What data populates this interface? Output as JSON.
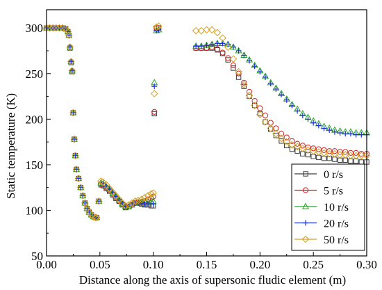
{
  "chart_data": {
    "type": "scatter",
    "xlabel": "Distance along the axis of supersonic fludic element (m)",
    "ylabel": "Static temperature (K)",
    "xlim": [
      0.0,
      0.3
    ],
    "ylim": [
      50,
      320
    ],
    "xticks": [
      "0.00",
      "0.05",
      "0.10",
      "0.15",
      "0.20",
      "0.25",
      "0.30"
    ],
    "yticks": [
      "50",
      "100",
      "150",
      "200",
      "250",
      "300"
    ],
    "legend_position": "lower-right",
    "series": [
      {
        "name": "0 r/s",
        "color": "#3a3a3a",
        "marker": "square",
        "x": [
          0.0,
          0.003,
          0.006,
          0.009,
          0.012,
          0.015,
          0.018,
          0.02,
          0.021,
          0.022,
          0.023,
          0.024,
          0.025,
          0.026,
          0.027,
          0.028,
          0.03,
          0.032,
          0.034,
          0.036,
          0.038,
          0.04,
          0.042,
          0.044,
          0.046,
          0.047,
          0.049,
          0.051,
          0.053,
          0.056,
          0.059,
          0.062,
          0.065,
          0.068,
          0.071,
          0.074,
          0.077,
          0.08,
          0.083,
          0.086,
          0.089,
          0.092,
          0.095,
          0.098,
          0.1,
          0.101,
          0.103,
          0.105,
          0.14,
          0.145,
          0.15,
          0.155,
          0.16,
          0.165,
          0.17,
          0.175,
          0.18,
          0.185,
          0.19,
          0.195,
          0.2,
          0.205,
          0.21,
          0.215,
          0.22,
          0.225,
          0.23,
          0.235,
          0.24,
          0.245,
          0.25,
          0.255,
          0.26,
          0.265,
          0.27,
          0.275,
          0.28,
          0.285,
          0.29,
          0.295,
          0.3
        ],
        "y": [
          300,
          300,
          300,
          300,
          300,
          300,
          299,
          296,
          292,
          278,
          262,
          252,
          207,
          178,
          160,
          145,
          135,
          125,
          116,
          108,
          102,
          98,
          95,
          93,
          92,
          92,
          110,
          128,
          127,
          124,
          121,
          117,
          113,
          110,
          106,
          103,
          104,
          106,
          108,
          108,
          107,
          106,
          106,
          105,
          105,
          206,
          300,
          300,
          278,
          278,
          278,
          278,
          276,
          272,
          265,
          256,
          246,
          236,
          225,
          215,
          206,
          197,
          189,
          182,
          176,
          171,
          167,
          165,
          162,
          161,
          159,
          158,
          157,
          157,
          156,
          155,
          155,
          154,
          154,
          153,
          153
        ]
      },
      {
        "name": "5 r/s",
        "color": "#cc2222",
        "marker": "circle",
        "x": [
          0.0,
          0.003,
          0.006,
          0.009,
          0.012,
          0.015,
          0.018,
          0.02,
          0.021,
          0.022,
          0.023,
          0.024,
          0.025,
          0.026,
          0.027,
          0.028,
          0.03,
          0.032,
          0.034,
          0.036,
          0.038,
          0.04,
          0.042,
          0.044,
          0.046,
          0.047,
          0.049,
          0.051,
          0.053,
          0.056,
          0.059,
          0.062,
          0.065,
          0.068,
          0.071,
          0.074,
          0.077,
          0.08,
          0.083,
          0.086,
          0.089,
          0.092,
          0.095,
          0.098,
          0.1,
          0.101,
          0.103,
          0.105,
          0.14,
          0.145,
          0.15,
          0.155,
          0.16,
          0.165,
          0.17,
          0.175,
          0.18,
          0.185,
          0.19,
          0.195,
          0.2,
          0.205,
          0.21,
          0.215,
          0.22,
          0.225,
          0.23,
          0.235,
          0.24,
          0.245,
          0.25,
          0.255,
          0.26,
          0.265,
          0.27,
          0.275,
          0.28,
          0.285,
          0.29,
          0.295,
          0.3
        ],
        "y": [
          300,
          300,
          300,
          300,
          300,
          300,
          299,
          296,
          292,
          279,
          263,
          253,
          207,
          178,
          160,
          145,
          135,
          125,
          116,
          108,
          102,
          98,
          95,
          93,
          92,
          92,
          110,
          129,
          128,
          125,
          122,
          118,
          114,
          110,
          107,
          104,
          104,
          106,
          108,
          109,
          109,
          110,
          112,
          113,
          115,
          208,
          300,
          300,
          278,
          278,
          278,
          279,
          277,
          273,
          267,
          259,
          250,
          240,
          230,
          220,
          212,
          204,
          196,
          190,
          184,
          180,
          176,
          173,
          171,
          169,
          168,
          167,
          166,
          165,
          165,
          164,
          164,
          163,
          163,
          162,
          162
        ]
      },
      {
        "name": "10 r/s",
        "color": "#22a822",
        "marker": "triangle",
        "x": [
          0.0,
          0.003,
          0.006,
          0.009,
          0.012,
          0.015,
          0.018,
          0.02,
          0.021,
          0.022,
          0.023,
          0.024,
          0.025,
          0.026,
          0.027,
          0.028,
          0.03,
          0.032,
          0.034,
          0.036,
          0.038,
          0.04,
          0.042,
          0.044,
          0.046,
          0.047,
          0.049,
          0.051,
          0.053,
          0.056,
          0.059,
          0.062,
          0.065,
          0.068,
          0.071,
          0.074,
          0.077,
          0.08,
          0.083,
          0.086,
          0.089,
          0.092,
          0.095,
          0.098,
          0.1,
          0.101,
          0.103,
          0.105,
          0.14,
          0.145,
          0.15,
          0.155,
          0.16,
          0.165,
          0.17,
          0.175,
          0.18,
          0.185,
          0.19,
          0.195,
          0.2,
          0.205,
          0.21,
          0.215,
          0.22,
          0.225,
          0.23,
          0.235,
          0.24,
          0.245,
          0.25,
          0.255,
          0.26,
          0.265,
          0.27,
          0.275,
          0.28,
          0.285,
          0.29,
          0.295,
          0.3
        ],
        "y": [
          300,
          300,
          300,
          300,
          300,
          300,
          299,
          296,
          292,
          279,
          263,
          253,
          207,
          178,
          160,
          145,
          135,
          125,
          116,
          108,
          102,
          98,
          95,
          93,
          92,
          92,
          110,
          130,
          129,
          126,
          123,
          119,
          115,
          111,
          107,
          104,
          104,
          106,
          108,
          109,
          109,
          109,
          109,
          109,
          110,
          240,
          297,
          298,
          280,
          280,
          281,
          282,
          283,
          283,
          282,
          279,
          275,
          270,
          265,
          259,
          253,
          247,
          240,
          234,
          228,
          222,
          216,
          211,
          206,
          202,
          198,
          195,
          192,
          190,
          188,
          187,
          186,
          186,
          185,
          185,
          185
        ]
      },
      {
        "name": "20 r/s",
        "color": "#1f2fd6",
        "marker": "plus",
        "x": [
          0.0,
          0.003,
          0.006,
          0.009,
          0.012,
          0.015,
          0.018,
          0.02,
          0.021,
          0.022,
          0.023,
          0.024,
          0.025,
          0.026,
          0.027,
          0.028,
          0.03,
          0.032,
          0.034,
          0.036,
          0.038,
          0.04,
          0.042,
          0.044,
          0.046,
          0.047,
          0.049,
          0.051,
          0.053,
          0.056,
          0.059,
          0.062,
          0.065,
          0.068,
          0.071,
          0.074,
          0.077,
          0.08,
          0.083,
          0.086,
          0.089,
          0.092,
          0.095,
          0.098,
          0.1,
          0.101,
          0.103,
          0.105,
          0.14,
          0.145,
          0.15,
          0.155,
          0.16,
          0.165,
          0.17,
          0.175,
          0.18,
          0.185,
          0.19,
          0.195,
          0.2,
          0.205,
          0.21,
          0.215,
          0.22,
          0.225,
          0.23,
          0.235,
          0.24,
          0.245,
          0.25,
          0.255,
          0.26,
          0.265,
          0.27,
          0.275,
          0.28,
          0.285,
          0.29,
          0.295,
          0.3
        ],
        "y": [
          300,
          300,
          300,
          300,
          300,
          300,
          299,
          296,
          292,
          279,
          263,
          253,
          207,
          178,
          160,
          145,
          135,
          125,
          116,
          108,
          102,
          98,
          95,
          93,
          92,
          92,
          110,
          130,
          129,
          126,
          123,
          119,
          115,
          111,
          107,
          104,
          104,
          106,
          108,
          108,
          108,
          107,
          107,
          107,
          107,
          236,
          297,
          298,
          280,
          280,
          281,
          282,
          283,
          283,
          282,
          279,
          275,
          270,
          264,
          258,
          252,
          246,
          239,
          233,
          227,
          221,
          215,
          209,
          204,
          200,
          196,
          193,
          190,
          188,
          186,
          185,
          184,
          184,
          183,
          183,
          183
        ]
      },
      {
        "name": "50 r/s",
        "color": "#d6a020",
        "marker": "diamond",
        "x": [
          0.0,
          0.003,
          0.006,
          0.009,
          0.012,
          0.015,
          0.018,
          0.02,
          0.021,
          0.022,
          0.023,
          0.024,
          0.025,
          0.026,
          0.027,
          0.028,
          0.03,
          0.032,
          0.034,
          0.036,
          0.038,
          0.04,
          0.042,
          0.044,
          0.046,
          0.047,
          0.049,
          0.051,
          0.053,
          0.056,
          0.059,
          0.062,
          0.065,
          0.068,
          0.071,
          0.074,
          0.077,
          0.08,
          0.083,
          0.086,
          0.089,
          0.092,
          0.095,
          0.098,
          0.1,
          0.101,
          0.103,
          0.105,
          0.14,
          0.145,
          0.15,
          0.155,
          0.16,
          0.165,
          0.17,
          0.175,
          0.18,
          0.185,
          0.19,
          0.195,
          0.2,
          0.205,
          0.21,
          0.215,
          0.22,
          0.225,
          0.23,
          0.235,
          0.24,
          0.245,
          0.25,
          0.255,
          0.26,
          0.265,
          0.27,
          0.275,
          0.28,
          0.285,
          0.29,
          0.295,
          0.3
        ],
        "y": [
          300,
          300,
          300,
          300,
          300,
          300,
          299,
          296,
          292,
          279,
          263,
          253,
          207,
          178,
          160,
          145,
          135,
          125,
          116,
          108,
          102,
          98,
          95,
          93,
          92,
          92,
          110,
          132,
          131,
          128,
          124,
          120,
          116,
          112,
          108,
          105,
          106,
          108,
          110,
          111,
          112,
          114,
          116,
          118,
          119,
          228,
          301,
          302,
          297,
          297,
          298,
          298,
          295,
          289,
          279,
          266,
          252,
          238,
          226,
          215,
          205,
          197,
          190,
          184,
          179,
          175,
          172,
          170,
          168,
          166,
          165,
          164,
          163,
          162,
          162,
          161,
          161,
          160,
          160,
          160,
          160
        ]
      }
    ]
  }
}
